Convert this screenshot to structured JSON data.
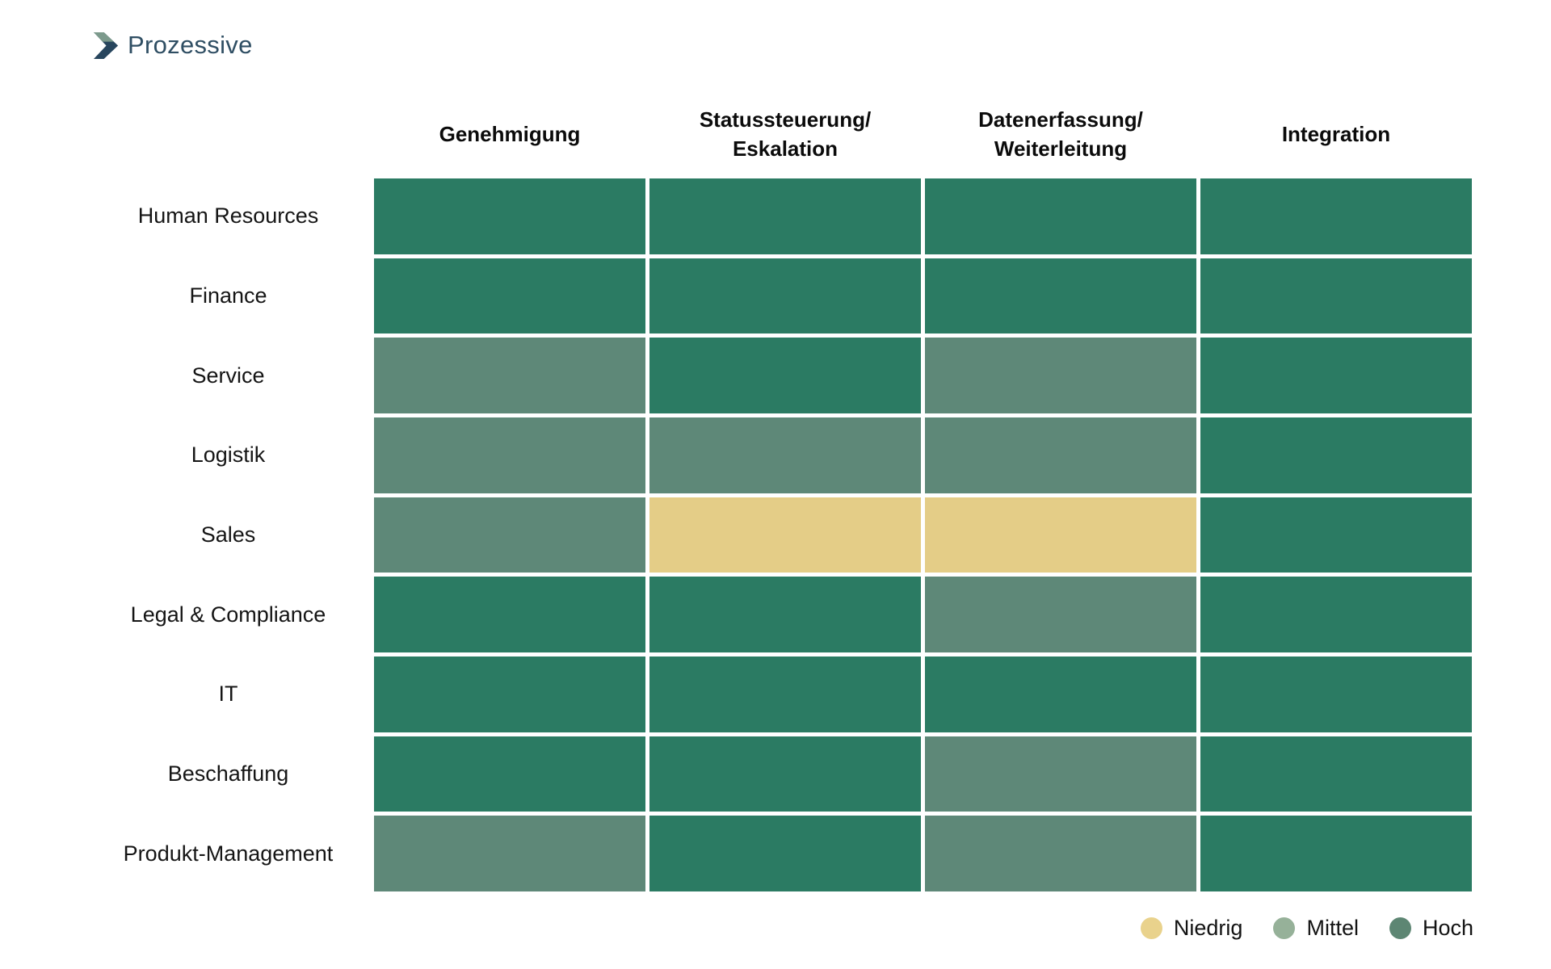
{
  "brand": {
    "name": "Prozessive"
  },
  "logo_colors": {
    "chevron_dark": "#27455d",
    "chevron_light": "#7c9a8c",
    "text": "#2f4e63"
  },
  "chart_data": {
    "type": "heatmap",
    "title": "",
    "columns": [
      "Genehmigung",
      "Statussteuerung/\nEskalation",
      "Datenerfassung/\nWeiterleitung",
      "Integration"
    ],
    "rows": [
      "Human Resources",
      "Finance",
      "Service",
      "Logistik",
      "Sales",
      "Legal & Compliance",
      "IT",
      "Beschaffung",
      "Produkt-Management"
    ],
    "values": [
      [
        "Hoch",
        "Hoch",
        "Hoch",
        "Hoch"
      ],
      [
        "Hoch",
        "Hoch",
        "Hoch",
        "Hoch"
      ],
      [
        "Mittel",
        "Hoch",
        "Mittel",
        "Hoch"
      ],
      [
        "Mittel",
        "Mittel",
        "Mittel",
        "Hoch"
      ],
      [
        "Mittel",
        "Niedrig",
        "Niedrig",
        "Hoch"
      ],
      [
        "Hoch",
        "Hoch",
        "Mittel",
        "Hoch"
      ],
      [
        "Hoch",
        "Hoch",
        "Hoch",
        "Hoch"
      ],
      [
        "Hoch",
        "Hoch",
        "Mittel",
        "Hoch"
      ],
      [
        "Mittel",
        "Hoch",
        "Mittel",
        "Hoch"
      ]
    ],
    "cell_colors": {
      "Niedrig": "#e4cd87",
      "Mittel": "#5e8878",
      "Hoch": "#2b7b63"
    },
    "legend": [
      {
        "label": "Niedrig",
        "color": "#e9d28c"
      },
      {
        "label": "Mittel",
        "color": "#96b199"
      },
      {
        "label": "Hoch",
        "color": "#5d8673"
      }
    ],
    "legend_position": "bottom-right",
    "grid": "white gaps between cells"
  }
}
